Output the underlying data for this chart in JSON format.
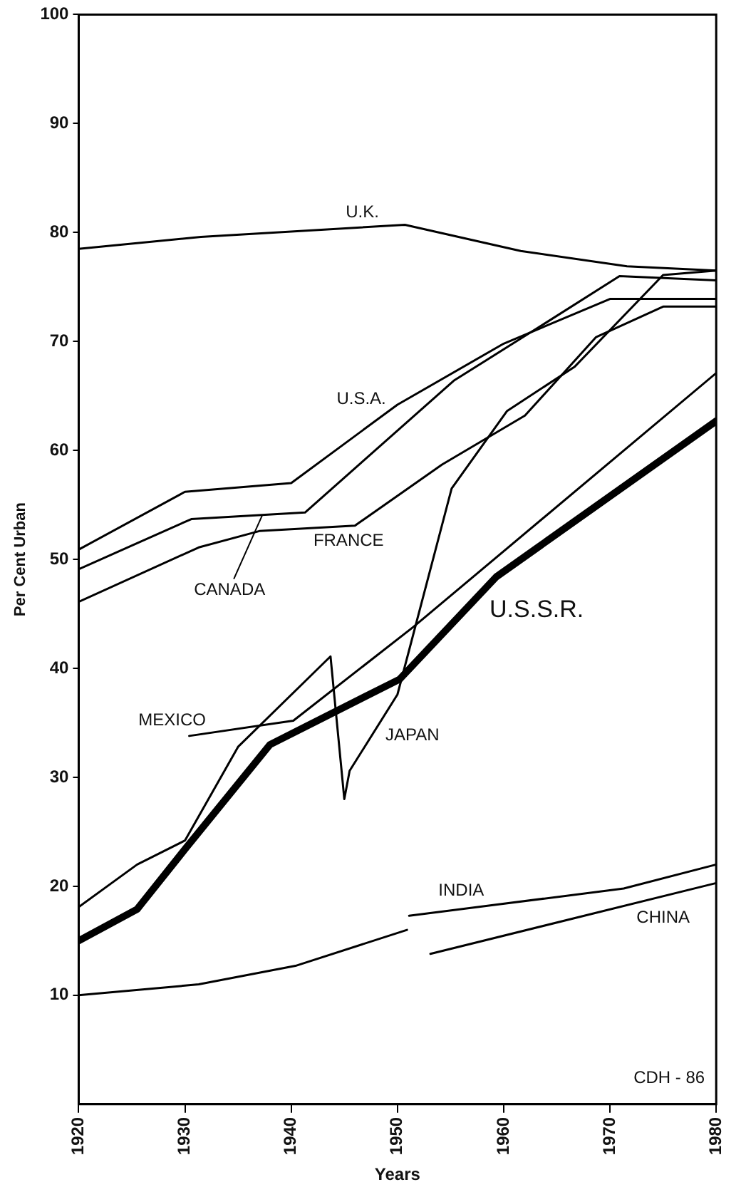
{
  "chart_data": {
    "type": "line",
    "xlabel": "Years",
    "ylabel": "Per Cent Urban",
    "xlim": [
      1920,
      1980
    ],
    "xticks": [
      1920,
      1930,
      1940,
      1950,
      1960,
      1970,
      1980
    ],
    "ylim": [
      0,
      100
    ],
    "yticks": [
      10,
      20,
      30,
      40,
      50,
      60,
      70,
      80,
      90,
      100
    ],
    "grid": false,
    "legend": false,
    "marker": "none",
    "line_style": "solid",
    "annotations": [
      "CDH - 86"
    ],
    "series": [
      {
        "name": "U.K.",
        "color": "#000000",
        "x": [
          1920,
          1931.5,
          1950.7,
          1961.6,
          1971.6,
          1980
        ],
        "values": [
          78.5,
          79.6,
          80.7,
          78.3,
          76.9,
          76.5
        ]
      },
      {
        "name": "U.S.A.",
        "color": "#000000",
        "x": [
          1920,
          1930,
          1940,
          1950,
          1960,
          1970,
          1980
        ],
        "values": [
          50.9,
          56.2,
          57.0,
          64.2,
          69.8,
          73.9,
          73.9
        ]
      },
      {
        "name": "CANADA",
        "color": "#000000",
        "x": [
          1920,
          1930.6,
          1941.3,
          1955.3,
          1963.3,
          1970.9,
          1980
        ],
        "values": [
          49.1,
          53.7,
          54.3,
          66.4,
          71.3,
          76.0,
          75.6
        ]
      },
      {
        "name": "FRANCE",
        "color": "#000000",
        "x": [
          1920,
          1931.3,
          1937,
          1946,
          1954.2,
          1962,
          1968.7,
          1975,
          1980
        ],
        "values": [
          46.1,
          51.1,
          52.6,
          53.1,
          58.7,
          63.2,
          70.4,
          73.2,
          73.2
        ]
      },
      {
        "name": "JAPAN",
        "color": "#000000",
        "x": [
          1920,
          1925.5,
          1930,
          1935,
          1943.7,
          1945,
          1945.5,
          1950,
          1955.1,
          1960.3,
          1966.7,
          1975,
          1980
        ],
        "values": [
          18.1,
          22.0,
          24.2,
          32.8,
          41.1,
          28.0,
          30.6,
          37.6,
          56.5,
          63.6,
          67.7,
          76.1,
          76.5
        ]
      },
      {
        "name": "MEXICO",
        "color": "#000000",
        "x": [
          1930.4,
          1940.2,
          1951.5,
          1980
        ],
        "values": [
          33.8,
          35.2,
          43.8,
          67.1
        ]
      },
      {
        "name": "U.S.S.R.",
        "color": "#000000",
        "x": [
          1920,
          1925.5,
          1930,
          1938,
          1950.2,
          1959.3,
          1980
        ],
        "values": [
          15.0,
          17.9,
          23.4,
          33.0,
          39.0,
          48.4,
          62.7
        ]
      },
      {
        "name": "INDIA",
        "color": "#000000",
        "x": [
          1920,
          1931.3,
          1940.4,
          1950.9,
          1951,
          1951.1,
          1971.3,
          1980
        ],
        "values": [
          10.0,
          11.0,
          12.7,
          16.0,
          null,
          17.3,
          19.8,
          22.0
        ]
      },
      {
        "name": "CHINA",
        "color": "#000000",
        "x": [
          1953.1,
          1980
        ],
        "values": [
          13.8,
          20.3
        ]
      }
    ]
  }
}
